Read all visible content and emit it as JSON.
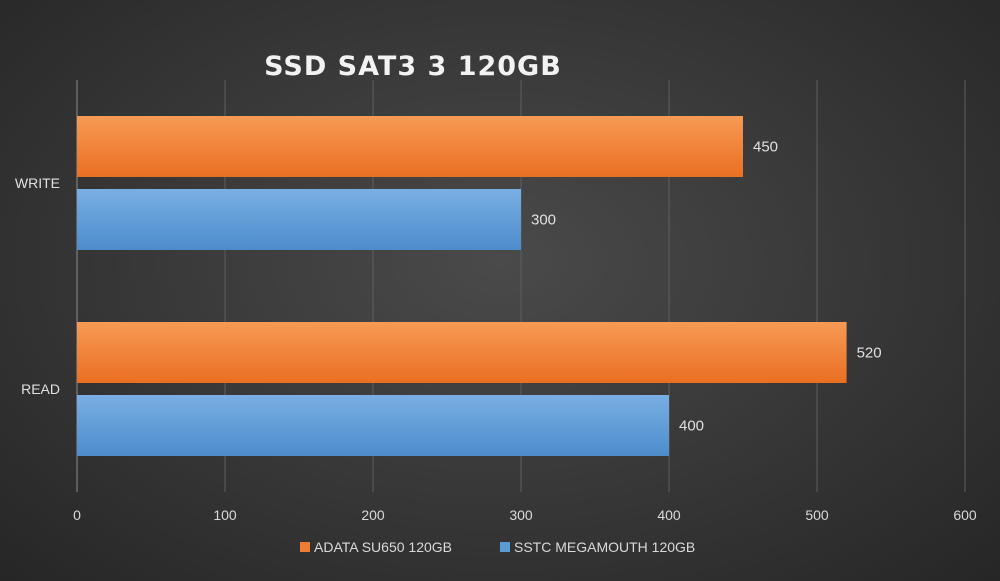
{
  "chart_data": {
    "type": "bar",
    "orientation": "horizontal",
    "title": "SSD SAT3 3 120GB",
    "xlabel": "",
    "ylabel": "",
    "categories": [
      "WRITE",
      "READ"
    ],
    "series": [
      {
        "name": "ADATA SU650 120GB",
        "color": "#f07c33",
        "values": [
          450,
          520
        ]
      },
      {
        "name": "SSTC MEGAMOUTH 120GB",
        "color": "#5b9bd5",
        "values": [
          300,
          400
        ]
      }
    ],
    "xlim": [
      0,
      600
    ],
    "xticks": [
      0,
      100,
      200,
      300,
      400,
      500,
      600
    ],
    "grid": true,
    "legend_position": "bottom"
  }
}
